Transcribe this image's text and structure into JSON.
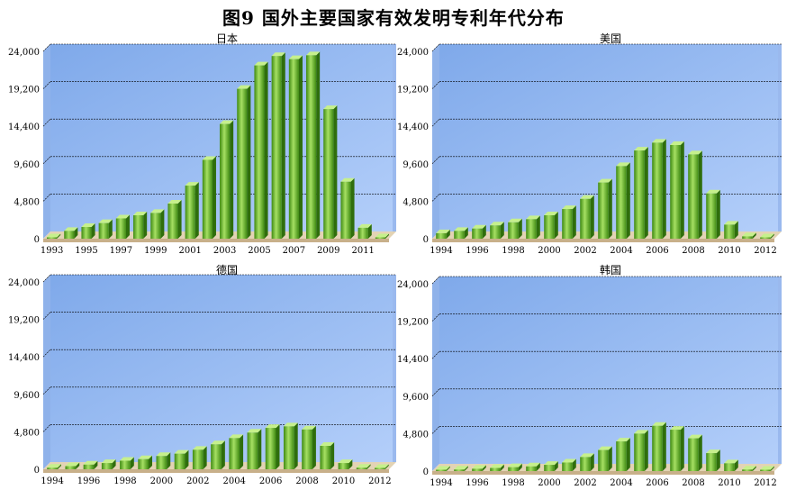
{
  "page": {
    "title": "图9 国外主要国家有效发明专利年代分布"
  },
  "colors": {
    "bg_top": "#7fa9ea",
    "bg_bottom": "#b4cffa",
    "bar_dark": "#3f8a12",
    "bar_light": "#a6e063",
    "floor": "#c8b08a",
    "grid": "#000000"
  },
  "chart_data": [
    {
      "type": "bar",
      "title": "日本",
      "ylim": [
        0,
        24000
      ],
      "yticks": [
        "0",
        "4,800",
        "9,600",
        "14,400",
        "19,200",
        "24,000"
      ],
      "grid": true,
      "categories": [
        "1993",
        "1994",
        "1995",
        "1996",
        "1997",
        "1998",
        "1999",
        "2000",
        "2001",
        "2002",
        "2003",
        "2004",
        "2005",
        "2006",
        "2007",
        "2008",
        "2009",
        "2010",
        "2011",
        "2012"
      ],
      "xtick_labels": [
        "1993",
        "1995",
        "1997",
        "1999",
        "2001",
        "2003",
        "2005",
        "2007",
        "2009",
        "2011"
      ],
      "values": [
        100,
        1000,
        1500,
        2000,
        2600,
        3000,
        3300,
        4500,
        6800,
        10100,
        14700,
        19200,
        22200,
        23400,
        23000,
        23500,
        16600,
        7300,
        1400,
        100
      ]
    },
    {
      "type": "bar",
      "title": "美国",
      "ylim": [
        0,
        24000
      ],
      "yticks": [
        "0",
        "4,800",
        "9,600",
        "14,400",
        "19,200",
        "24,000"
      ],
      "grid": true,
      "categories": [
        "1994",
        "1995",
        "1996",
        "1997",
        "1998",
        "1999",
        "2000",
        "2001",
        "2002",
        "2003",
        "2004",
        "2005",
        "2006",
        "2007",
        "2008",
        "2009",
        "2010",
        "2011",
        "2012"
      ],
      "xtick_labels": [
        "1994",
        "1996",
        "1998",
        "2000",
        "2002",
        "2004",
        "2006",
        "2008",
        "2010",
        "2012"
      ],
      "values": [
        700,
        1000,
        1300,
        1700,
        2100,
        2500,
        3000,
        3800,
        5100,
        7200,
        9300,
        11300,
        12300,
        12000,
        10800,
        5800,
        1800,
        300,
        100
      ]
    },
    {
      "type": "bar",
      "title": "德国",
      "ylim": [
        0,
        24000
      ],
      "yticks": [
        "0",
        "4,800",
        "9,600",
        "14,400",
        "19,200",
        "24,000"
      ],
      "grid": true,
      "categories": [
        "1994",
        "1995",
        "1996",
        "1997",
        "1998",
        "1999",
        "2000",
        "2001",
        "2002",
        "2003",
        "2004",
        "2005",
        "2006",
        "2007",
        "2008",
        "2009",
        "2010",
        "2011",
        "2012"
      ],
      "xtick_labels": [
        "1994",
        "1996",
        "1998",
        "2000",
        "2002",
        "2004",
        "2006",
        "2008",
        "2010",
        "2012"
      ],
      "values": [
        200,
        400,
        600,
        800,
        1100,
        1300,
        1700,
        2000,
        2500,
        3200,
        4000,
        4700,
        5300,
        5500,
        5100,
        3000,
        800,
        200,
        100
      ]
    },
    {
      "type": "bar",
      "title": "韩国",
      "ylim": [
        0,
        24000
      ],
      "yticks": [
        "0",
        "4,800",
        "9,600",
        "14,400",
        "19,200",
        "24,000"
      ],
      "grid": true,
      "categories": [
        "1994",
        "1995",
        "1996",
        "1997",
        "1998",
        "1999",
        "2000",
        "2001",
        "2002",
        "2003",
        "2004",
        "2005",
        "2006",
        "2007",
        "2008",
        "2009",
        "2010",
        "2011",
        "2012"
      ],
      "xtick_labels": [
        "1994",
        "1996",
        "1998",
        "2000",
        "2002",
        "2004",
        "2006",
        "2008",
        "2010",
        "2012"
      ],
      "values": [
        100,
        200,
        300,
        400,
        500,
        600,
        800,
        1100,
        1800,
        2700,
        3800,
        4800,
        5800,
        5300,
        4200,
        2300,
        1000,
        200,
        100
      ]
    }
  ]
}
